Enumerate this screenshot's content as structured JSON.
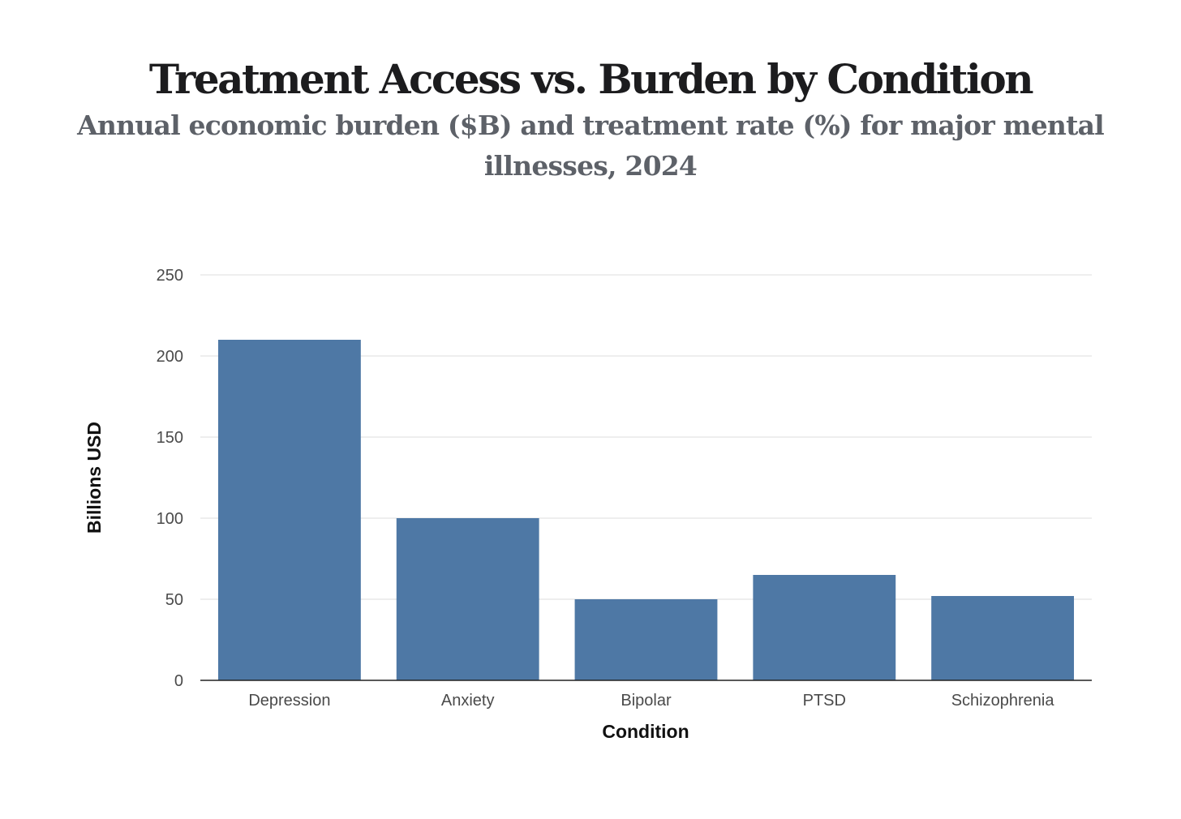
{
  "chart_data": {
    "type": "bar",
    "title": "Treatment Access vs. Burden by Condition",
    "subtitle": "Annual economic burden ($B) and treatment rate (%) for major mental illnesses, 2024",
    "xlabel": "Condition",
    "ylabel": "Billions USD",
    "categories": [
      "Depression",
      "Anxiety",
      "Bipolar",
      "PTSD",
      "Schizophrenia"
    ],
    "values": [
      210,
      100,
      50,
      65,
      52
    ],
    "ylim": [
      0,
      250
    ],
    "yticks": [
      0,
      50,
      100,
      150,
      200,
      250
    ],
    "grid": true,
    "legend": "none",
    "bar_color": "#4e78a5",
    "grid_color": "#e3e3e3",
    "axis_color": "#222222"
  }
}
